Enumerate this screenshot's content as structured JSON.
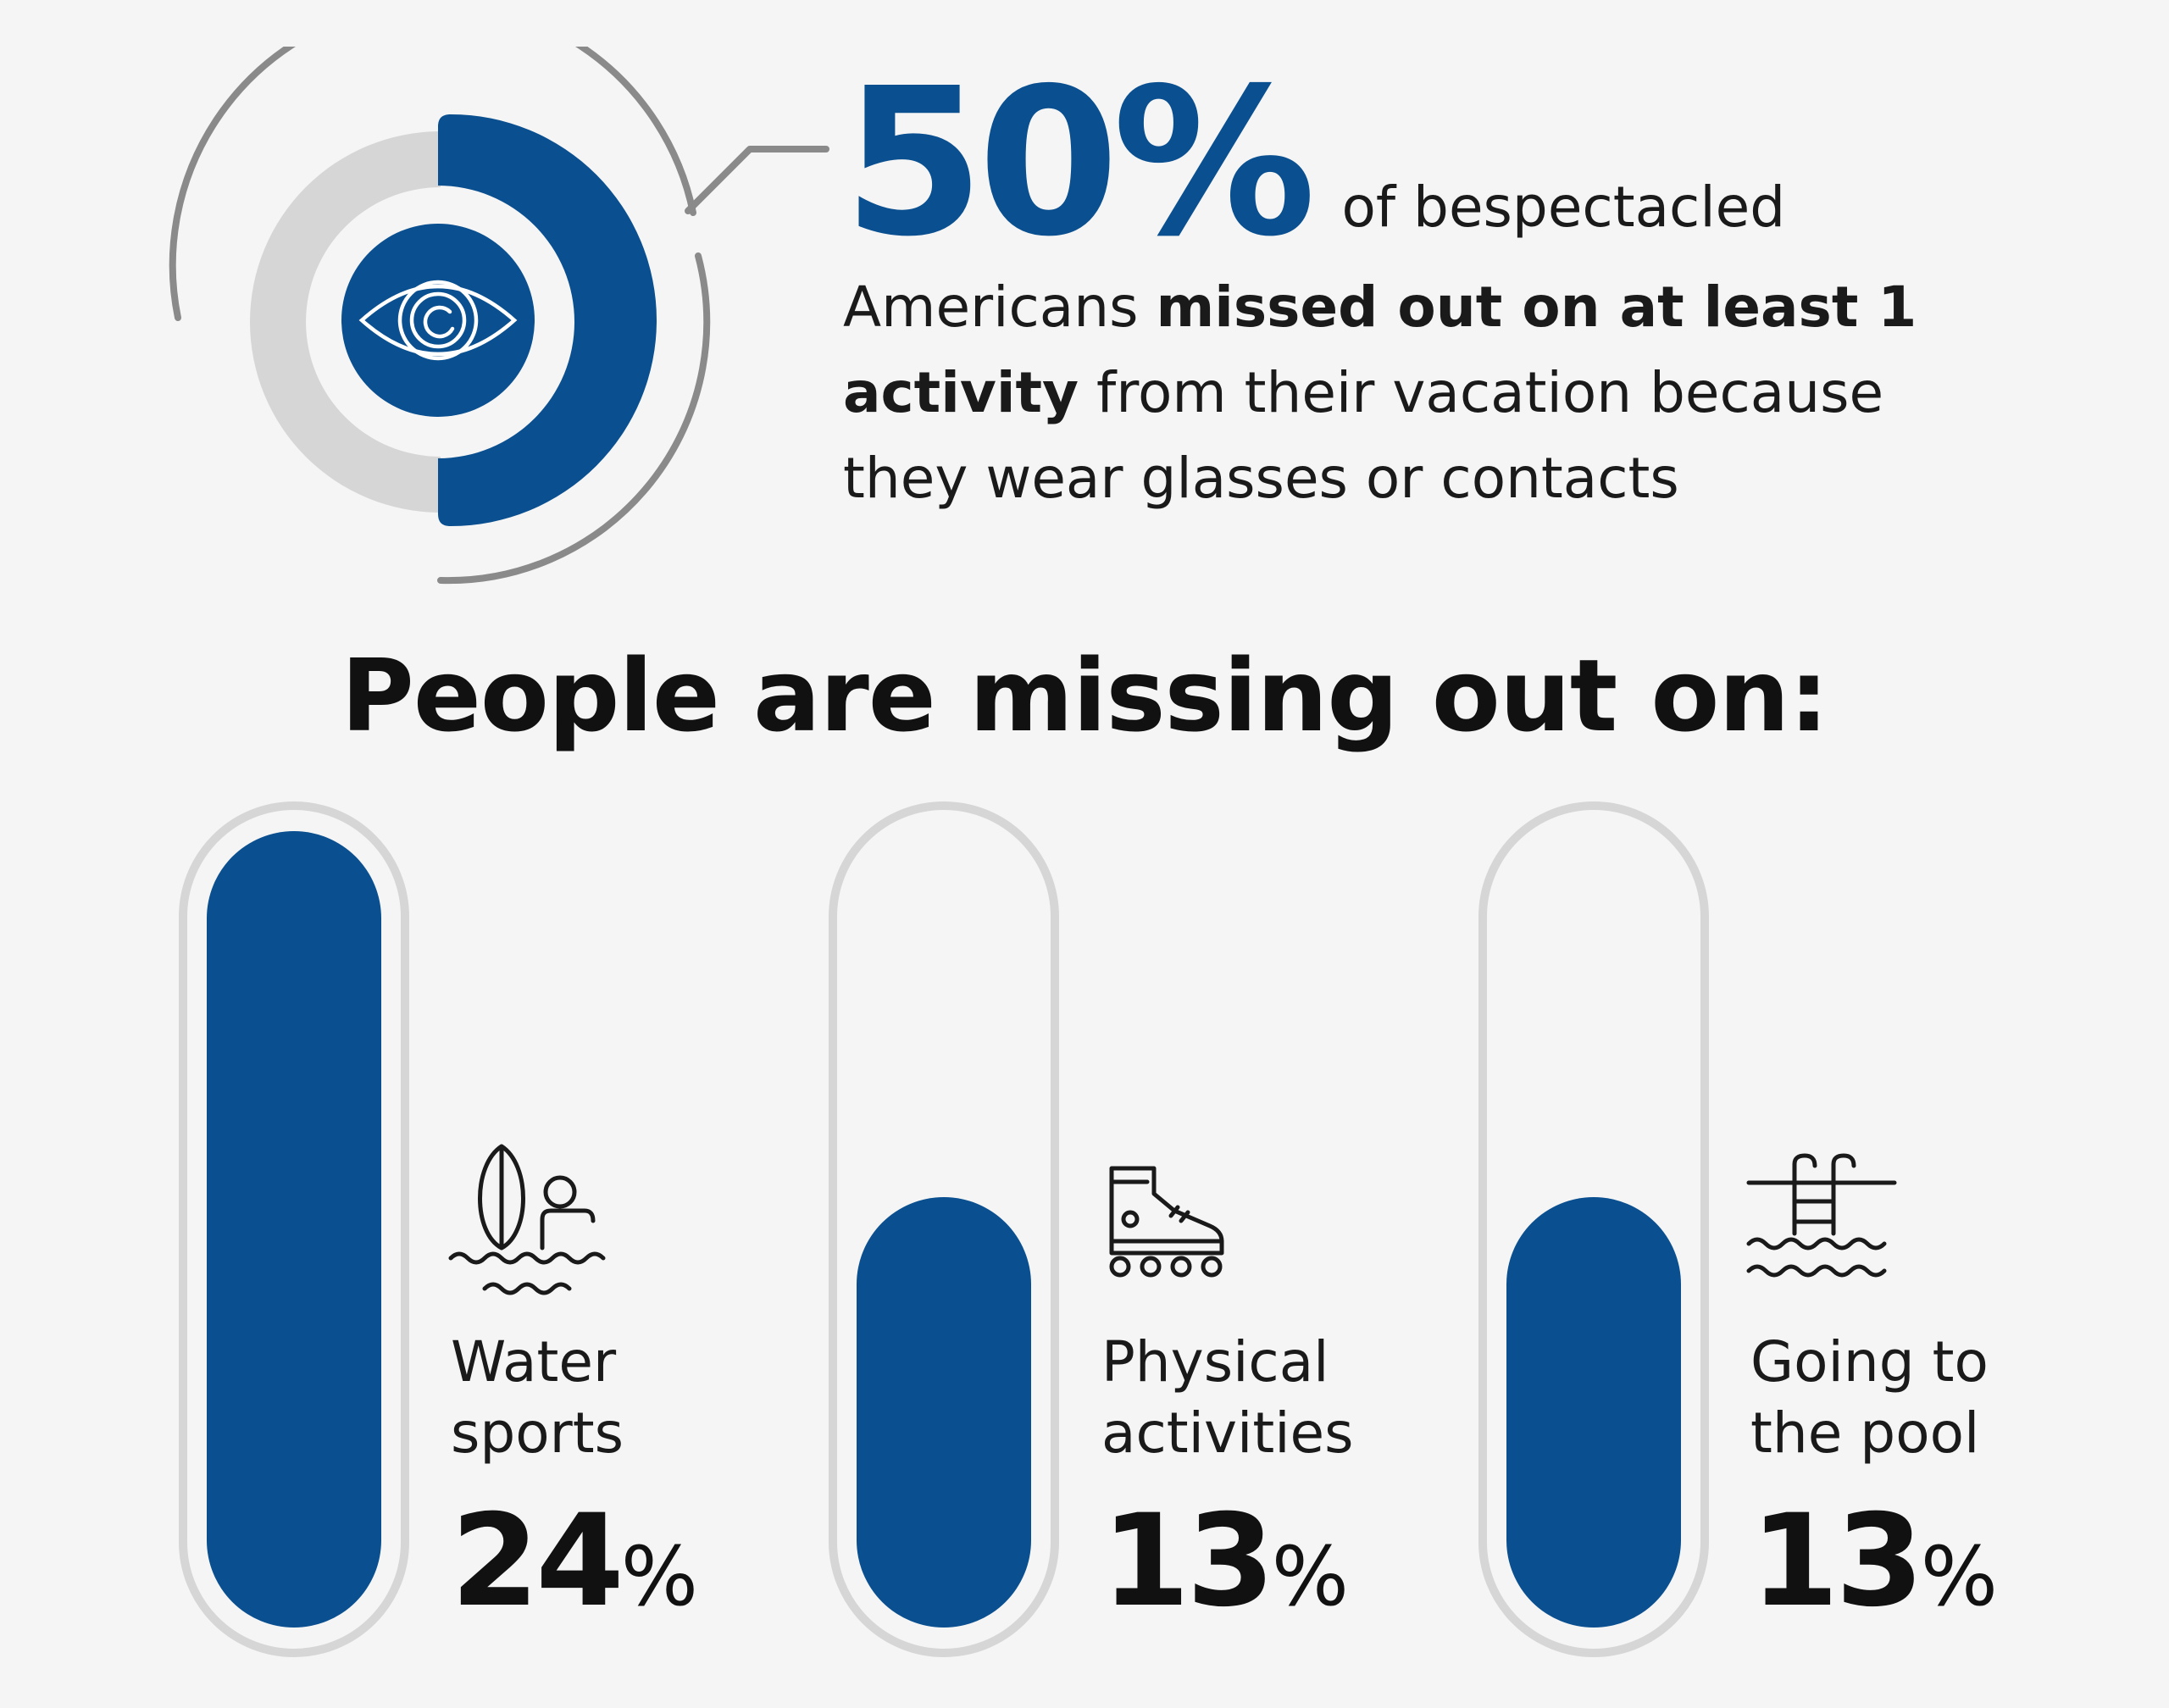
{
  "headline": {
    "percent": "50%",
    "intro": "of bespectacled",
    "line1_regular": "Americans ",
    "line1_bold": "missed out on at least 1",
    "line2_bold": "activity",
    "line2_regular": " from their vacation because",
    "line3": "they wear glasses or contacts"
  },
  "section_title": "People are missing out on:",
  "colors": {
    "primary": "#0a4f8f",
    "track": "#d6d6d6",
    "ring": "#8a8a8a",
    "background": "#f5f5f5",
    "text": "#111111"
  },
  "activities": [
    {
      "label_line1": "Water",
      "label_line2": "sports",
      "value": "24",
      "unit": "%",
      "icon": "surfboard-swimmer-icon"
    },
    {
      "label_line1": "Physical",
      "label_line2": "activities",
      "value": "13",
      "unit": "%",
      "icon": "rollerblade-icon"
    },
    {
      "label_line1": "Going to",
      "label_line2": "the pool",
      "value": "13",
      "unit": "%",
      "icon": "pool-ladder-icon"
    }
  ],
  "chart_data": {
    "type": "bar",
    "categories": [
      "Water sports",
      "Physical activities",
      "Going to the pool"
    ],
    "values": [
      24,
      13,
      13
    ],
    "highlight_stat": {
      "value": 50,
      "unit": "%"
    }
  }
}
